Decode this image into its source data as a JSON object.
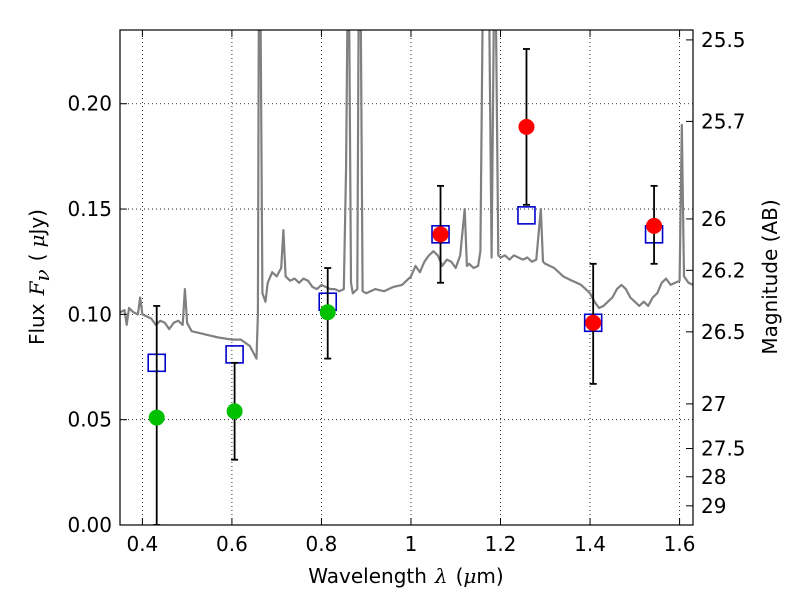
{
  "chart_data": {
    "type": "scatter",
    "title": "",
    "grid": true,
    "xlabel": {
      "text": "Wavelength",
      "symbol": "λ",
      "unit_open": "(",
      "mu": "μ",
      "unit_rest": "m)"
    },
    "ylabel": {
      "text": "Flux",
      "symbol": "F",
      "subscript": "ν",
      "unit_open": "(",
      "mu": "μ",
      "unit_rest": "Jy)"
    },
    "y2label": "Magnitude (AB)",
    "xlim": [
      0.35,
      1.63
    ],
    "ylim": [
      0.0,
      0.235
    ],
    "xticks": [
      0.4,
      0.6,
      0.8,
      1.0,
      1.2,
      1.4,
      1.6
    ],
    "xtick_labels": [
      "0.4",
      "0.6",
      "0.8",
      "1",
      "1.2",
      "1.4",
      "1.6"
    ],
    "yticks": [
      0.0,
      0.05,
      0.1,
      0.15,
      0.2
    ],
    "ytick_labels": [
      "0.00",
      "0.05",
      "0.10",
      "0.15",
      "0.20"
    ],
    "mag_ticks": [
      {
        "label": "25.5",
        "flux": 0.2303
      },
      {
        "label": "25.7",
        "flux": 0.1916
      },
      {
        "label": "26",
        "flux": 0.1453
      },
      {
        "label": "26.2",
        "flux": 0.1209
      },
      {
        "label": "26.5",
        "flux": 0.0917
      },
      {
        "label": "27",
        "flux": 0.0575
      },
      {
        "label": "27.5",
        "flux": 0.0363
      },
      {
        "label": "28",
        "flux": 0.0229
      },
      {
        "label": "29",
        "flux": 0.0091
      }
    ],
    "series": [
      {
        "kind": "observed-upper-limit-bands",
        "color": "#00c000",
        "points": [
          {
            "x": 0.432,
            "y": 0.051,
            "err_low": 0.051,
            "err_high": 0.053
          },
          {
            "x": 0.606,
            "y": 0.054,
            "err_low": 0.023,
            "err_high": 0.023
          },
          {
            "x": 0.814,
            "y": 0.101,
            "err_low": 0.022,
            "err_high": 0.021
          }
        ]
      },
      {
        "kind": "observed-detections",
        "color": "#ff0000",
        "points": [
          {
            "x": 1.066,
            "y": 0.138,
            "err_low": 0.023,
            "err_high": 0.023
          },
          {
            "x": 1.258,
            "y": 0.189,
            "err_low": 0.037,
            "err_high": 0.037
          },
          {
            "x": 1.407,
            "y": 0.096,
            "err_low": 0.029,
            "err_high": 0.028
          },
          {
            "x": 1.543,
            "y": 0.142,
            "err_low": 0.018,
            "err_high": 0.019
          }
        ]
      },
      {
        "kind": "model-photometry",
        "color": "#0000cc",
        "marker": "square",
        "points": [
          {
            "x": 0.432,
            "y": 0.077
          },
          {
            "x": 0.606,
            "y": 0.081
          },
          {
            "x": 0.814,
            "y": 0.106
          },
          {
            "x": 1.066,
            "y": 0.138
          },
          {
            "x": 1.258,
            "y": 0.147
          },
          {
            "x": 1.407,
            "y": 0.096
          },
          {
            "x": 1.543,
            "y": 0.138
          }
        ]
      },
      {
        "kind": "model-spectrum",
        "color": "#808080",
        "points": [
          [
            0.35,
            0.101
          ],
          [
            0.36,
            0.102
          ],
          [
            0.365,
            0.095
          ],
          [
            0.37,
            0.103
          ],
          [
            0.38,
            0.101
          ],
          [
            0.39,
            0.1
          ],
          [
            0.395,
            0.108
          ],
          [
            0.4,
            0.1
          ],
          [
            0.41,
            0.099
          ],
          [
            0.42,
            0.098
          ],
          [
            0.43,
            0.095
          ],
          [
            0.44,
            0.097
          ],
          [
            0.45,
            0.096
          ],
          [
            0.46,
            0.093
          ],
          [
            0.47,
            0.096
          ],
          [
            0.48,
            0.097
          ],
          [
            0.49,
            0.095
          ],
          [
            0.495,
            0.112
          ],
          [
            0.5,
            0.096
          ],
          [
            0.51,
            0.092
          ],
          [
            0.53,
            0.091
          ],
          [
            0.55,
            0.09
          ],
          [
            0.57,
            0.089
          ],
          [
            0.6,
            0.088
          ],
          [
            0.62,
            0.088
          ],
          [
            0.64,
            0.085
          ],
          [
            0.65,
            0.081
          ],
          [
            0.655,
            0.079
          ],
          [
            0.658,
            0.1
          ],
          [
            0.66,
            0.24
          ],
          [
            0.664,
            0.24
          ],
          [
            0.668,
            0.11
          ],
          [
            0.675,
            0.106
          ],
          [
            0.68,
            0.115
          ],
          [
            0.69,
            0.12
          ],
          [
            0.7,
            0.118
          ],
          [
            0.71,
            0.122
          ],
          [
            0.715,
            0.14
          ],
          [
            0.72,
            0.118
          ],
          [
            0.73,
            0.116
          ],
          [
            0.74,
            0.117
          ],
          [
            0.75,
            0.115
          ],
          [
            0.76,
            0.117
          ],
          [
            0.77,
            0.116
          ],
          [
            0.78,
            0.113
          ],
          [
            0.79,
            0.112
          ],
          [
            0.8,
            0.114
          ],
          [
            0.81,
            0.113
          ],
          [
            0.82,
            0.112
          ],
          [
            0.83,
            0.112
          ],
          [
            0.84,
            0.111
          ],
          [
            0.85,
            0.112
          ],
          [
            0.855,
            0.17
          ],
          [
            0.858,
            0.24
          ],
          [
            0.862,
            0.24
          ],
          [
            0.866,
            0.115
          ],
          [
            0.87,
            0.11
          ],
          [
            0.88,
            0.112
          ],
          [
            0.883,
            0.24
          ],
          [
            0.888,
            0.24
          ],
          [
            0.892,
            0.111
          ],
          [
            0.9,
            0.11
          ],
          [
            0.92,
            0.112
          ],
          [
            0.94,
            0.111
          ],
          [
            0.96,
            0.113
          ],
          [
            0.98,
            0.114
          ],
          [
            1.0,
            0.118
          ],
          [
            1.01,
            0.123
          ],
          [
            1.02,
            0.12
          ],
          [
            1.03,
            0.125
          ],
          [
            1.04,
            0.128
          ],
          [
            1.05,
            0.13
          ],
          [
            1.06,
            0.128
          ],
          [
            1.07,
            0.123
          ],
          [
            1.08,
            0.126
          ],
          [
            1.09,
            0.125
          ],
          [
            1.1,
            0.122
          ],
          [
            1.11,
            0.128
          ],
          [
            1.12,
            0.15
          ],
          [
            1.125,
            0.123
          ],
          [
            1.13,
            0.124
          ],
          [
            1.14,
            0.122
          ],
          [
            1.15,
            0.123
          ],
          [
            1.155,
            0.13
          ],
          [
            1.16,
            0.24
          ],
          [
            1.175,
            0.24
          ],
          [
            1.18,
            0.127
          ],
          [
            1.185,
            0.24
          ],
          [
            1.19,
            0.24
          ],
          [
            1.195,
            0.128
          ],
          [
            1.2,
            0.127
          ],
          [
            1.21,
            0.128
          ],
          [
            1.22,
            0.126
          ],
          [
            1.23,
            0.128
          ],
          [
            1.24,
            0.127
          ],
          [
            1.25,
            0.126
          ],
          [
            1.26,
            0.127
          ],
          [
            1.27,
            0.125
          ],
          [
            1.28,
            0.126
          ],
          [
            1.29,
            0.15
          ],
          [
            1.295,
            0.125
          ],
          [
            1.3,
            0.124
          ],
          [
            1.31,
            0.123
          ],
          [
            1.32,
            0.122
          ],
          [
            1.33,
            0.12
          ],
          [
            1.34,
            0.118
          ],
          [
            1.35,
            0.117
          ],
          [
            1.36,
            0.116
          ],
          [
            1.37,
            0.115
          ],
          [
            1.38,
            0.114
          ],
          [
            1.39,
            0.112
          ],
          [
            1.4,
            0.11
          ],
          [
            1.41,
            0.106
          ],
          [
            1.42,
            0.103
          ],
          [
            1.43,
            0.104
          ],
          [
            1.44,
            0.106
          ],
          [
            1.45,
            0.108
          ],
          [
            1.46,
            0.112
          ],
          [
            1.47,
            0.114
          ],
          [
            1.48,
            0.112
          ],
          [
            1.49,
            0.108
          ],
          [
            1.5,
            0.106
          ],
          [
            1.51,
            0.104
          ],
          [
            1.52,
            0.106
          ],
          [
            1.53,
            0.104
          ],
          [
            1.54,
            0.108
          ],
          [
            1.55,
            0.11
          ],
          [
            1.56,
            0.115
          ],
          [
            1.57,
            0.117
          ],
          [
            1.58,
            0.114
          ],
          [
            1.59,
            0.115
          ],
          [
            1.6,
            0.116
          ],
          [
            1.605,
            0.19
          ],
          [
            1.61,
            0.118
          ],
          [
            1.62,
            0.115
          ],
          [
            1.63,
            0.114
          ]
        ]
      }
    ]
  }
}
